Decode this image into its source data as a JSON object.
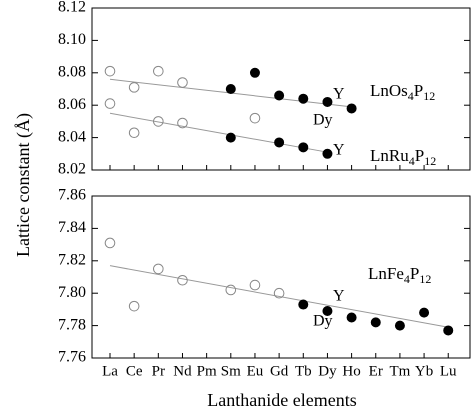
{
  "chart_data": {
    "type": "scatter",
    "x_label": "Lanthanide elements",
    "y_label": "Lattice constant (Å)",
    "categories": [
      "La",
      "Ce",
      "Pr",
      "Nd",
      "Pm",
      "Sm",
      "Eu",
      "Gd",
      "Tb",
      "Dy",
      "Ho",
      "Er",
      "Tm",
      "Yb",
      "Lu"
    ],
    "panels": [
      {
        "ylim": [
          8.02,
          8.12
        ],
        "yticks": [
          8.02,
          8.04,
          8.06,
          8.08,
          {
            "value": 8.1,
            "label": "8.10"
          },
          8.12
        ],
        "annotations": [
          "Y",
          "Dy",
          "Y"
        ],
        "compounds": [
          {
            "label": [
              "LnOs",
              "4",
              "P",
              "12"
            ],
            "open": [
              8.081,
              8.071,
              8.081,
              8.074,
              null,
              null,
              null,
              null,
              null,
              null,
              null,
              null,
              null,
              null,
              null
            ],
            "filled": [
              null,
              null,
              null,
              null,
              null,
              8.07,
              8.08,
              8.066,
              8.064,
              8.062,
              8.058,
              null,
              null,
              null,
              null
            ],
            "fit": {
              "from": "La",
              "to": "Ho",
              "values": [
                8.076,
                8.059
              ]
            }
          },
          {
            "label": [
              "LnRu",
              "4",
              "P",
              "12"
            ],
            "open": [
              8.061,
              8.043,
              8.05,
              8.049,
              null,
              null,
              8.052,
              null,
              null,
              null,
              null,
              null,
              null,
              null,
              null
            ],
            "filled": [
              null,
              null,
              null,
              null,
              null,
              8.04,
              null,
              8.037,
              8.034,
              8.03,
              null,
              null,
              null,
              null,
              null
            ],
            "fit": {
              "from": "La",
              "to": "Dy",
              "values": [
                8.055,
                8.031
              ]
            }
          }
        ]
      },
      {
        "ylim": [
          7.76,
          7.86
        ],
        "yticks": [
          7.76,
          7.78,
          {
            "value": 7.8,
            "label": "7.80"
          },
          7.82,
          7.84,
          7.86
        ],
        "annotations": [
          "Y",
          "Dy"
        ],
        "compounds": [
          {
            "label": [
              "LnFe",
              "4",
              "P",
              "12"
            ],
            "open": [
              7.831,
              7.792,
              7.815,
              7.808,
              null,
              7.802,
              7.805,
              7.8,
              null,
              null,
              null,
              null,
              null,
              null,
              null
            ],
            "filled": [
              null,
              null,
              null,
              null,
              null,
              null,
              null,
              null,
              7.793,
              7.789,
              7.785,
              7.782,
              7.78,
              7.788,
              7.777
            ],
            "fit": {
              "from": "La",
              "to": "Lu",
              "values": [
                7.817,
                7.779
              ]
            }
          }
        ]
      }
    ],
    "marker_colors": {
      "open": "#888888",
      "filled": "#000000"
    },
    "fit_color": "#999999"
  }
}
